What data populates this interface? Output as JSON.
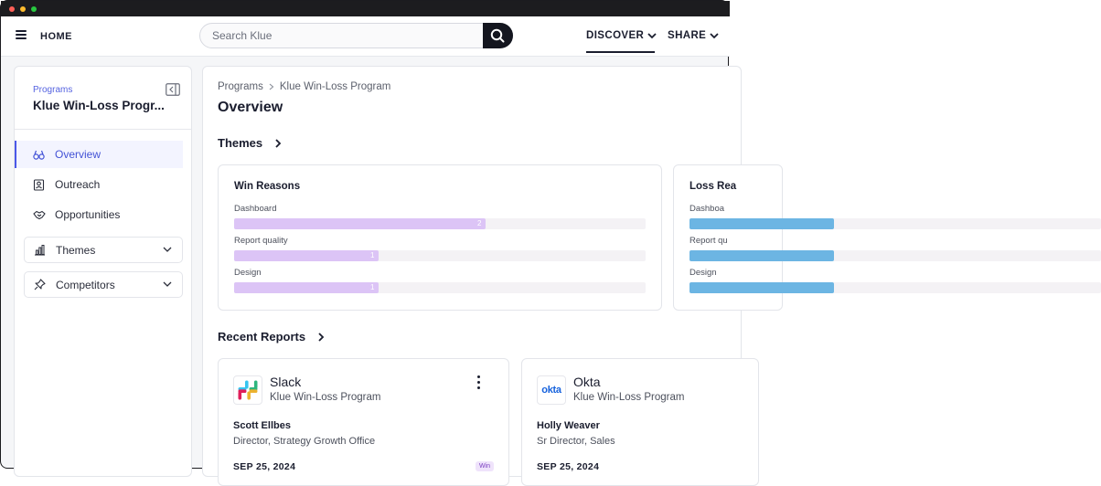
{
  "topbar": {
    "home_label": "HOME",
    "search_placeholder": "Search Klue",
    "nav": [
      {
        "label": "DISCOVER"
      },
      {
        "label": "SHARE"
      }
    ]
  },
  "sidebar": {
    "programs_label": "Programs",
    "program_title": "Klue Win-Loss Progr...",
    "items": [
      {
        "label": "Overview",
        "icon": "binoculars-icon",
        "active": true
      },
      {
        "label": "Outreach",
        "icon": "contact-card-icon"
      },
      {
        "label": "Opportunities",
        "icon": "handshake-icon"
      }
    ],
    "dropdowns": [
      {
        "label": "Themes",
        "icon": "bar-chart-icon"
      },
      {
        "label": "Competitors",
        "icon": "pin-icon"
      }
    ]
  },
  "main": {
    "breadcrumb": [
      "Programs",
      "Klue Win-Loss Program"
    ],
    "title": "Overview",
    "themes_heading": "Themes",
    "recent_heading": "Recent Reports",
    "theme_cards": [
      {
        "title": "Win Reasons",
        "color": "#dcc4f6",
        "rows": [
          {
            "label": "Dashboard",
            "value": "2",
            "fraction": 0.61
          },
          {
            "label": "Report quality",
            "value": "1",
            "fraction": 0.35
          },
          {
            "label": "Design",
            "value": "1",
            "fraction": 0.35
          }
        ]
      },
      {
        "title": "Loss Rea",
        "color": "#6cb5e3",
        "rows": [
          {
            "label": "Dashboa",
            "fraction": 0.35
          },
          {
            "label": "Report qu",
            "fraction": 0.35
          },
          {
            "label": "Design",
            "fraction": 0.35
          }
        ]
      }
    ],
    "reports": [
      {
        "company": "Slack",
        "program": "Klue Win-Loss Program",
        "person": "Scott Ellbes",
        "role": "Director, Strategy Growth Office",
        "date": "SEP 25, 2024",
        "badge": "Win"
      },
      {
        "company": "Okta",
        "logo_text": "okta",
        "program": "Klue Win-Loss Program",
        "person": "Holly Weaver",
        "role": "Sr Director, Sales",
        "date": "SEP 25, 2024"
      }
    ]
  },
  "colors": {
    "accent": "#4a58e8",
    "dark": "#14161f"
  }
}
